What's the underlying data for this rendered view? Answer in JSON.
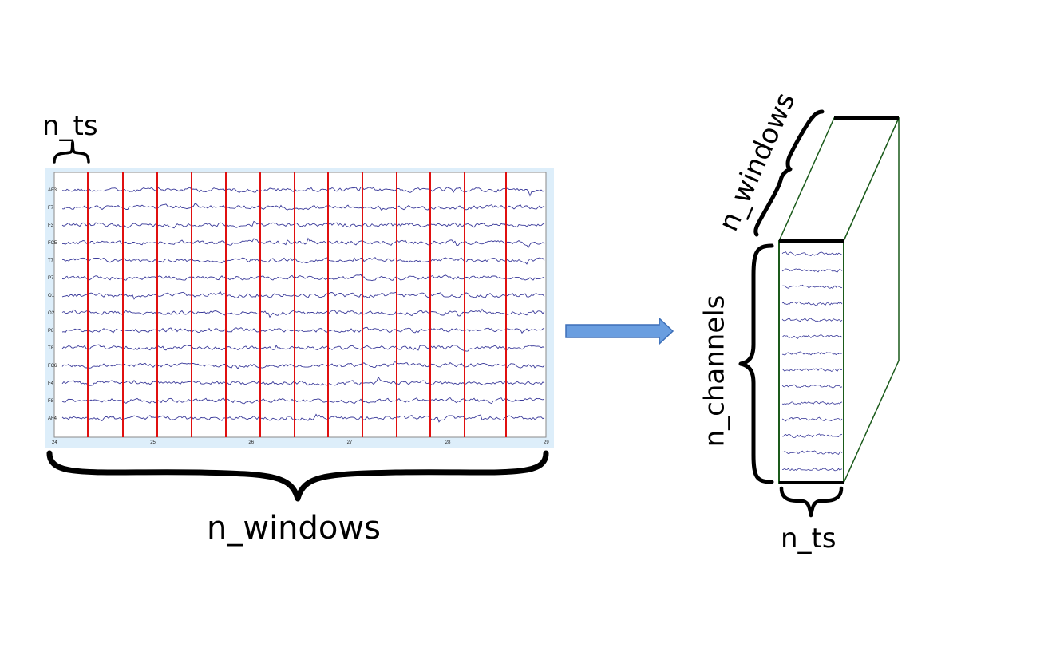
{
  "labels": {
    "n_ts_top": "n_ts",
    "n_windows_bottom": "n_windows",
    "n_windows_rotated": "n_windows",
    "n_channels": "n_channels",
    "n_ts_cube": "n_ts"
  },
  "eeg": {
    "channels": [
      "AF3",
      "F7",
      "F3",
      "FC5",
      "T7",
      "P7",
      "O1",
      "O2",
      "P8",
      "T8",
      "FC6",
      "F4",
      "F8",
      "AF4"
    ],
    "x_ticks": [
      "24",
      "25",
      "26",
      "27",
      "28",
      "29"
    ],
    "window_count": 14
  },
  "colors": {
    "panel_bg": "#ddeefa",
    "trace": "#3a3a9a",
    "window_line": "#e01010",
    "arrow_fill": "#6a9ee0",
    "arrow_stroke": "#3d6fb8",
    "cube_edge": "#1a5a1a",
    "cube_thick": "#000000"
  }
}
